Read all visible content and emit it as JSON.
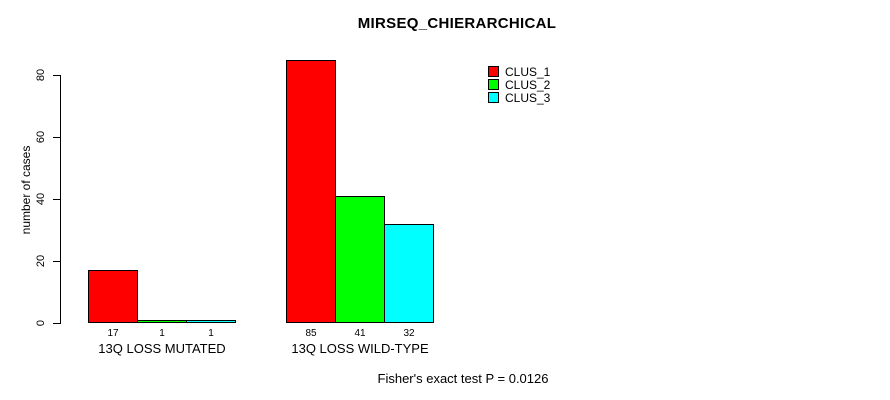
{
  "title": "MIRSEQ_CHIERARCHICAL",
  "footer": "Fisher's exact test P = 0.0126",
  "chart_data": {
    "type": "bar",
    "title": "MIRSEQ_CHIERARCHICAL",
    "xlabel": "",
    "ylabel": "number of cases",
    "categories": [
      "13Q LOSS MUTATED",
      "13Q LOSS WILD-TYPE"
    ],
    "series": [
      {
        "name": "CLUS_1",
        "color": "#ff0000",
        "values": [
          17,
          85
        ]
      },
      {
        "name": "CLUS_2",
        "color": "#00ff00",
        "values": [
          1,
          41
        ]
      },
      {
        "name": "CLUS_3",
        "color": "#00ffff",
        "values": [
          1,
          32
        ]
      }
    ],
    "bar_value_labels": [
      [
        "17",
        "1",
        "1"
      ],
      [
        "85",
        "41",
        "32"
      ]
    ],
    "yticks": [
      "0",
      "20",
      "40",
      "60",
      "80"
    ],
    "ylim": [
      0,
      85
    ],
    "grid": false,
    "legend": {
      "position": "topright",
      "entries": [
        "CLUS_1",
        "CLUS_2",
        "CLUS_3"
      ]
    },
    "annotation": "Fisher's exact test P = 0.0126",
    "bar_border_color": "#000000",
    "axis_color": "#000000",
    "background_color": "#ffffff"
  }
}
